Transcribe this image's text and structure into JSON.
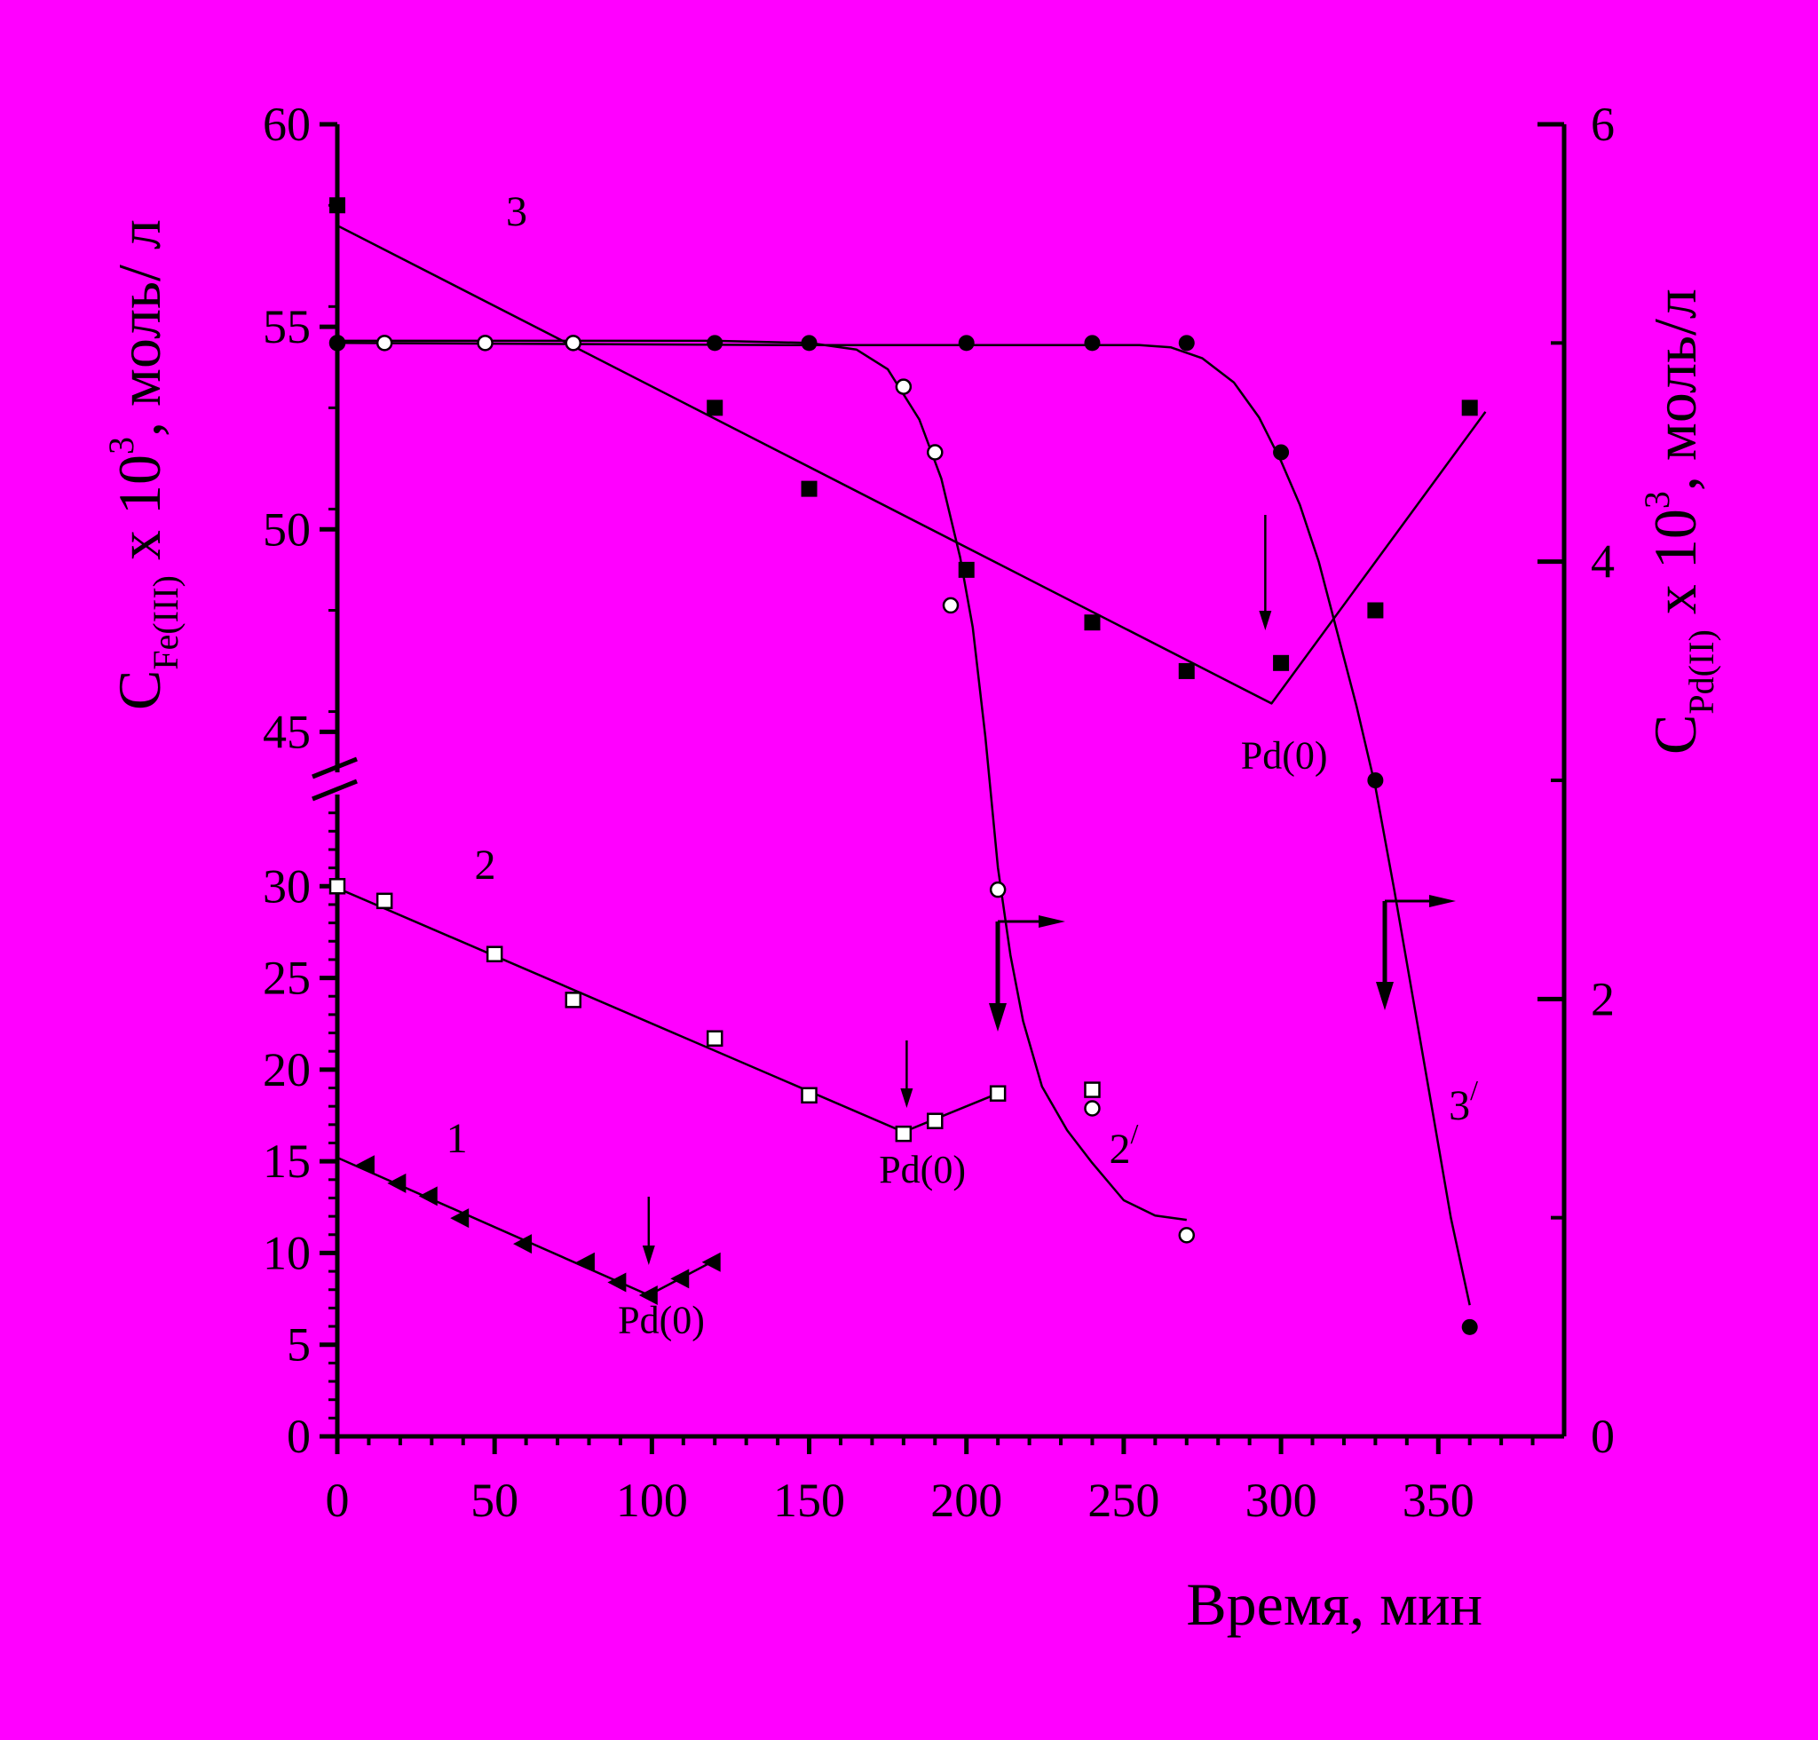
{
  "chart_data": {
    "type": "scatter",
    "x_axis": {
      "label": "Время, мин",
      "range": [
        0,
        390
      ],
      "ticks": [
        0,
        50,
        100,
        150,
        200,
        250,
        300,
        350
      ]
    },
    "y_left_axis": {
      "label_main": "C",
      "label_sub": "Fe(III)",
      "label_rest": " x 10",
      "label_sup": "3",
      "label_unit": ", моль/ л",
      "broken": true,
      "lower_range": [
        0,
        35
      ],
      "lower_ticks": [
        0,
        5,
        10,
        15,
        20,
        25,
        30
      ],
      "upper_range": [
        44,
        60
      ],
      "upper_ticks": [
        45,
        50,
        55,
        60
      ]
    },
    "y_right_axis": {
      "label_main": "C",
      "label_sub": "Pd(II)",
      "label_rest": " x 10",
      "label_sup": "3",
      "label_unit": ", моль/л",
      "range": [
        0,
        6
      ],
      "ticks": [
        0,
        2,
        4,
        6
      ]
    },
    "series": [
      {
        "name": "1",
        "axis": "left",
        "marker": "triangle-left-filled",
        "points": [
          [
            9,
            14.8
          ],
          [
            19,
            13.8
          ],
          [
            29,
            13.1
          ],
          [
            39,
            11.9
          ],
          [
            59,
            10.5
          ],
          [
            79,
            9.5
          ],
          [
            89,
            8.4
          ],
          [
            99,
            7.7
          ],
          [
            109,
            8.6
          ],
          [
            119,
            9.5
          ]
        ],
        "fit": [
          [
            0,
            15.2
          ],
          [
            99,
            7.7
          ],
          [
            120,
            9.6
          ]
        ]
      },
      {
        "name": "2",
        "axis": "left",
        "marker": "square-open",
        "points": [
          [
            0,
            30
          ],
          [
            15,
            29.2
          ],
          [
            50,
            26.3
          ],
          [
            75,
            23.8
          ],
          [
            120,
            21.7
          ],
          [
            150,
            18.6
          ],
          [
            180,
            16.5
          ],
          [
            190,
            17.2
          ],
          [
            210,
            18.7
          ],
          [
            240,
            18.9
          ]
        ],
        "fit": [
          [
            0,
            29.9
          ],
          [
            180,
            16.6
          ],
          [
            210,
            18.7
          ]
        ]
      },
      {
        "name": "3",
        "axis": "left",
        "marker": "square-filled",
        "points": [
          [
            0,
            58
          ],
          [
            120,
            53
          ],
          [
            150,
            51
          ],
          [
            200,
            49
          ],
          [
            240,
            47.7
          ],
          [
            270,
            46.5
          ],
          [
            300,
            46.7
          ],
          [
            330,
            48
          ],
          [
            360,
            53
          ]
        ],
        "fit": [
          [
            0,
            57.5
          ],
          [
            297,
            45.7
          ],
          [
            365,
            52.9
          ]
        ]
      },
      {
        "name": "2/",
        "axis": "right",
        "marker": "circle-open",
        "points": [
          [
            0,
            5
          ],
          [
            15,
            5
          ],
          [
            47,
            5
          ],
          [
            75,
            5
          ],
          [
            180,
            4.8
          ],
          [
            190,
            4.5
          ],
          [
            195,
            3.8
          ],
          [
            210,
            2.5
          ],
          [
            240,
            1.5
          ],
          [
            270,
            0.92
          ]
        ],
        "fit": [
          [
            0,
            5.01
          ],
          [
            60,
            5.01
          ],
          [
            120,
            5.01
          ],
          [
            150,
            5
          ],
          [
            165,
            4.97
          ],
          [
            175,
            4.88
          ],
          [
            185,
            4.65
          ],
          [
            192,
            4.38
          ],
          [
            198,
            4.02
          ],
          [
            202,
            3.7
          ],
          [
            206,
            3.2
          ],
          [
            208,
            2.9
          ],
          [
            210,
            2.6
          ],
          [
            214,
            2.2
          ],
          [
            218,
            1.9
          ],
          [
            224,
            1.6
          ],
          [
            232,
            1.4
          ],
          [
            240,
            1.25
          ],
          [
            250,
            1.08
          ],
          [
            260,
            1.01
          ],
          [
            270,
            0.99
          ]
        ]
      },
      {
        "name": "3/",
        "axis": "right",
        "marker": "circle-filled",
        "points": [
          [
            0,
            5
          ],
          [
            120,
            5
          ],
          [
            150,
            5
          ],
          [
            200,
            5
          ],
          [
            240,
            5
          ],
          [
            270,
            5
          ],
          [
            300,
            4.5
          ],
          [
            330,
            3
          ],
          [
            360,
            0.5
          ]
        ],
        "fit": [
          [
            0,
            5
          ],
          [
            150,
            4.99
          ],
          [
            230,
            4.99
          ],
          [
            255,
            4.99
          ],
          [
            265,
            4.98
          ],
          [
            275,
            4.93
          ],
          [
            285,
            4.82
          ],
          [
            293,
            4.66
          ],
          [
            300,
            4.46
          ],
          [
            306,
            4.26
          ],
          [
            312,
            4.0
          ],
          [
            318,
            3.67
          ],
          [
            324,
            3.34
          ],
          [
            330,
            2.97
          ],
          [
            336,
            2.5
          ],
          [
            342,
            2.0
          ],
          [
            348,
            1.5
          ],
          [
            354,
            1.0
          ],
          [
            360,
            0.6
          ]
        ]
      }
    ],
    "annotations": [
      {
        "text": "Pd(0)",
        "x": 103,
        "y": 8.3,
        "axis": "left"
      },
      {
        "text": "Pd(0)",
        "x": 186,
        "y": 16.5,
        "axis": "left"
      },
      {
        "text": "Pd(0)",
        "x": 301,
        "y": 45.3,
        "axis": "left"
      }
    ],
    "curve_labels": [
      {
        "text": "1",
        "x": 38,
        "y": 15.5,
        "axis": "left"
      },
      {
        "text": "2",
        "x": 47,
        "y": 30.4,
        "axis": "left"
      },
      {
        "text": "3",
        "x": 57,
        "y": 57.5,
        "axis": "left"
      },
      {
        "text": "2",
        "sup": "/",
        "x": 250,
        "y": 1.25,
        "axis": "right"
      },
      {
        "text": "3",
        "sup": "/",
        "x": 358,
        "y": 1.45,
        "axis": "right"
      }
    ]
  }
}
